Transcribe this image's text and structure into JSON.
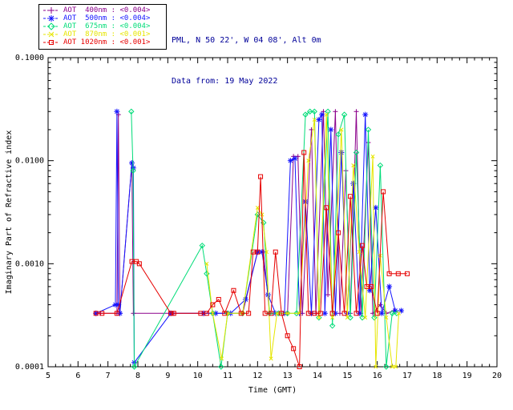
{
  "header": {
    "site_line": "PML, N 50 22', W 04 08', Alt 0m",
    "date_line": "Data from: 19 May 2022"
  },
  "legend": {
    "position": "top-left-outside",
    "entries": [
      {
        "label": "AOT  400nm : <0.004>",
        "color": "#8B008B",
        "marker": "plus"
      },
      {
        "label": "AOT  500nm : <0.004>",
        "color": "#1414FF",
        "marker": "asterisk"
      },
      {
        "label": "AOT  675nm : <0.004>",
        "color": "#00DC78",
        "marker": "diamond"
      },
      {
        "label": "AOT  870nm : <0.001>",
        "color": "#E6E600",
        "marker": "x"
      },
      {
        "label": "AOT 1020nm : <0.001>",
        "color": "#E60000",
        "marker": "square"
      }
    ]
  },
  "chart_data": {
    "type": "line",
    "title": "",
    "xlabel": "Time (GMT)",
    "ylabel": "Imaginary Part of Refractive index",
    "xlim": [
      5,
      20
    ],
    "ylim": [
      0.0001,
      0.1
    ],
    "yscale": "log",
    "grid": false,
    "x_ticks": [
      5,
      6,
      7,
      8,
      9,
      10,
      11,
      12,
      13,
      14,
      15,
      16,
      17,
      18,
      19,
      20
    ],
    "y_ticks": [
      {
        "value": 0.0001,
        "label": "0.0001"
      },
      {
        "value": 0.001,
        "label": "0.0010"
      },
      {
        "value": 0.01,
        "label": "0.0100"
      },
      {
        "value": 0.1,
        "label": "0.1000"
      }
    ],
    "series": [
      {
        "name": "AOT 400nm",
        "color": "#8B008B",
        "marker": "plus",
        "points": [
          [
            6.6,
            0.00033
          ],
          [
            6.75,
            0.00033
          ],
          [
            7.3,
            0.00033
          ],
          [
            7.35,
            0.028
          ],
          [
            7.4,
            0.00033
          ],
          [
            7.8,
            0.0095
          ],
          [
            7.85,
            0.00033
          ],
          [
            9.1,
            0.00033
          ],
          [
            9.2,
            0.00033
          ],
          [
            10.15,
            0.00033
          ],
          [
            10.5,
            0.00033
          ],
          [
            11.0,
            0.00033
          ],
          [
            11.5,
            0.00033
          ],
          [
            12.0,
            0.0013
          ],
          [
            12.2,
            0.0013
          ],
          [
            12.4,
            0.00033
          ],
          [
            12.7,
            0.00033
          ],
          [
            13.0,
            0.00033
          ],
          [
            13.2,
            0.011
          ],
          [
            13.35,
            0.011
          ],
          [
            13.5,
            0.00033
          ],
          [
            13.8,
            0.02
          ],
          [
            13.95,
            0.00033
          ],
          [
            14.2,
            0.03
          ],
          [
            14.35,
            0.0005
          ],
          [
            14.6,
            0.03
          ],
          [
            14.75,
            0.00033
          ],
          [
            14.95,
            0.008
          ],
          [
            15.1,
            0.00033
          ],
          [
            15.3,
            0.03
          ],
          [
            15.45,
            0.00033
          ],
          [
            15.7,
            0.015
          ],
          [
            15.85,
            0.00033
          ],
          [
            16.1,
            0.0004
          ],
          [
            16.3,
            0.00033
          ],
          [
            16.55,
            0.00035
          ],
          [
            16.8,
            0.00035
          ]
        ]
      },
      {
        "name": "AOT 500nm",
        "color": "#1414FF",
        "marker": "asterisk",
        "points": [
          [
            6.6,
            0.00033
          ],
          [
            7.25,
            0.0004
          ],
          [
            7.3,
            0.03
          ],
          [
            7.35,
            0.0004
          ],
          [
            7.4,
            0.00033
          ],
          [
            7.8,
            0.0095
          ],
          [
            7.85,
            0.0085
          ],
          [
            7.88,
            0.00011
          ],
          [
            9.1,
            0.00033
          ],
          [
            10.2,
            0.00033
          ],
          [
            10.6,
            0.00033
          ],
          [
            11.1,
            0.00033
          ],
          [
            11.6,
            0.00045
          ],
          [
            12.0,
            0.0013
          ],
          [
            12.15,
            0.0013
          ],
          [
            12.35,
            0.0005
          ],
          [
            12.6,
            0.00033
          ],
          [
            12.9,
            0.00033
          ],
          [
            13.1,
            0.01
          ],
          [
            13.25,
            0.0105
          ],
          [
            13.4,
            0.00033
          ],
          [
            13.6,
            0.004
          ],
          [
            13.8,
            0.00033
          ],
          [
            14.05,
            0.025
          ],
          [
            14.15,
            0.028
          ],
          [
            14.25,
            0.00033
          ],
          [
            14.45,
            0.02
          ],
          [
            14.6,
            0.00033
          ],
          [
            14.8,
            0.012
          ],
          [
            15.0,
            0.00033
          ],
          [
            15.2,
            0.006
          ],
          [
            15.4,
            0.00033
          ],
          [
            15.6,
            0.028
          ],
          [
            15.75,
            0.00055
          ],
          [
            15.95,
            0.0035
          ],
          [
            16.15,
            0.00033
          ],
          [
            16.4,
            0.0006
          ],
          [
            16.6,
            0.00035
          ],
          [
            16.8,
            0.00035
          ]
        ]
      },
      {
        "name": "AOT 675nm",
        "color": "#00DC78",
        "marker": "diamond",
        "points": [
          [
            7.78,
            0.03
          ],
          [
            7.84,
            0.008
          ],
          [
            7.88,
            0.0001
          ],
          [
            10.15,
            0.0015
          ],
          [
            10.3,
            0.0008
          ],
          [
            10.5,
            0.00033
          ],
          [
            10.78,
            0.0001
          ],
          [
            11.0,
            0.00033
          ],
          [
            11.5,
            0.00033
          ],
          [
            12.0,
            0.003
          ],
          [
            12.2,
            0.0025
          ],
          [
            12.4,
            0.00033
          ],
          [
            12.7,
            0.00033
          ],
          [
            13.0,
            0.00033
          ],
          [
            13.3,
            0.00033
          ],
          [
            13.6,
            0.028
          ],
          [
            13.75,
            0.03
          ],
          [
            13.9,
            0.03
          ],
          [
            14.05,
            0.0003
          ],
          [
            14.35,
            0.03
          ],
          [
            14.5,
            0.00025
          ],
          [
            14.7,
            0.018
          ],
          [
            14.9,
            0.028
          ],
          [
            15.1,
            0.0003
          ],
          [
            15.3,
            0.012
          ],
          [
            15.5,
            0.0003
          ],
          [
            15.7,
            0.02
          ],
          [
            15.9,
            0.0003
          ],
          [
            16.1,
            0.009
          ],
          [
            16.3,
            0.0001
          ],
          [
            16.5,
            0.00033
          ],
          [
            16.65,
            0.00033
          ]
        ]
      },
      {
        "name": "AOT 870nm",
        "color": "#E6E600",
        "marker": "x",
        "points": [
          [
            10.3,
            0.001
          ],
          [
            10.5,
            0.00033
          ],
          [
            10.8,
            0.00012
          ],
          [
            11.0,
            0.00033
          ],
          [
            11.5,
            0.00033
          ],
          [
            12.0,
            0.0035
          ],
          [
            12.15,
            0.003
          ],
          [
            12.3,
            0.0013
          ],
          [
            12.45,
            0.00012
          ],
          [
            12.65,
            0.00033
          ],
          [
            13.0,
            0.00033
          ],
          [
            13.4,
            0.00033
          ],
          [
            13.7,
            0.01
          ],
          [
            13.9,
            0.025
          ],
          [
            14.05,
            0.0003
          ],
          [
            14.3,
            0.028
          ],
          [
            14.5,
            0.0003
          ],
          [
            14.8,
            0.02
          ],
          [
            15.0,
            0.0003
          ],
          [
            15.2,
            0.009
          ],
          [
            15.4,
            0.0013
          ],
          [
            15.6,
            0.0003
          ],
          [
            15.85,
            0.011
          ],
          [
            15.95,
            0.0001
          ],
          [
            16.1,
            0.0012
          ],
          [
            16.3,
            0.0003
          ],
          [
            16.5,
            0.0001
          ],
          [
            16.62,
            0.0001
          ],
          [
            16.72,
            0.00033
          ]
        ]
      },
      {
        "name": "AOT 1020nm",
        "color": "#E60000",
        "marker": "square",
        "points": [
          [
            6.6,
            0.00033
          ],
          [
            6.8,
            0.00033
          ],
          [
            7.3,
            0.00033
          ],
          [
            7.8,
            0.00105
          ],
          [
            7.95,
            0.00105
          ],
          [
            8.05,
            0.001
          ],
          [
            9.1,
            0.00033
          ],
          [
            9.2,
            0.00033
          ],
          [
            10.1,
            0.00033
          ],
          [
            10.3,
            0.00033
          ],
          [
            10.5,
            0.0004
          ],
          [
            10.7,
            0.00045
          ],
          [
            10.9,
            0.00033
          ],
          [
            11.2,
            0.00055
          ],
          [
            11.45,
            0.00033
          ],
          [
            11.7,
            0.00033
          ],
          [
            11.85,
            0.0013
          ],
          [
            12.0,
            0.0013
          ],
          [
            12.1,
            0.007
          ],
          [
            12.25,
            0.00033
          ],
          [
            12.45,
            0.00033
          ],
          [
            12.6,
            0.0013
          ],
          [
            12.8,
            0.00033
          ],
          [
            13.0,
            0.0002
          ],
          [
            13.2,
            0.00015
          ],
          [
            13.4,
            0.0001
          ],
          [
            13.55,
            0.012
          ],
          [
            13.7,
            0.00033
          ],
          [
            13.9,
            0.00033
          ],
          [
            14.1,
            0.00033
          ],
          [
            14.3,
            0.0035
          ],
          [
            14.5,
            0.00033
          ],
          [
            14.7,
            0.002
          ],
          [
            14.9,
            0.00033
          ],
          [
            15.1,
            0.0045
          ],
          [
            15.3,
            0.00033
          ],
          [
            15.5,
            0.0015
          ],
          [
            15.65,
            0.0006
          ],
          [
            15.8,
            0.0006
          ],
          [
            16.0,
            0.00033
          ],
          [
            16.2,
            0.005
          ],
          [
            16.4,
            0.0008
          ],
          [
            16.7,
            0.0008
          ],
          [
            17.0,
            0.0008
          ]
        ]
      }
    ]
  }
}
